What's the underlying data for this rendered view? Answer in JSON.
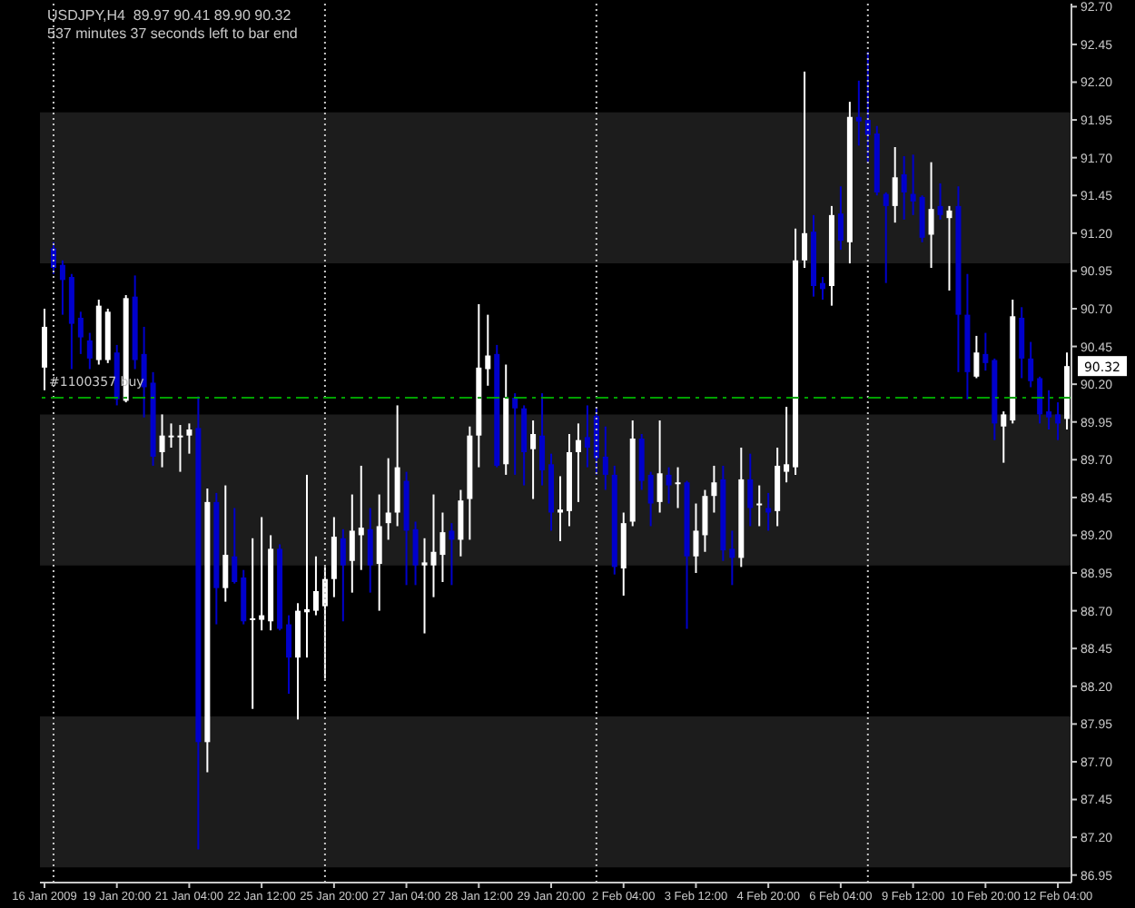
{
  "chart_data": {
    "type": "candlestick",
    "title": "USDJPY,H4  89.97 90.41 89.90 90.32",
    "subtitle": "537 minutes 37 seconds left to bar end",
    "categories": [
      "16 Jan 2009",
      null,
      null,
      null,
      null,
      null,
      null,
      null,
      "19 Jan 20:00",
      null,
      null,
      null,
      null,
      null,
      null,
      null,
      "21 Jan 04:00",
      null,
      null,
      null,
      null,
      null,
      null,
      null,
      "22 Jan 12:00",
      null,
      null,
      null,
      null,
      null,
      null,
      null,
      "25 Jan 20:00",
      null,
      null,
      null,
      null,
      null,
      null,
      null,
      "27 Jan 04:00",
      null,
      null,
      null,
      null,
      null,
      null,
      null,
      "28 Jan 12:00",
      null,
      null,
      null,
      null,
      null,
      null,
      null,
      "29 Jan 20:00",
      null,
      null,
      null,
      null,
      null,
      null,
      null,
      "2 Feb 04:00",
      null,
      null,
      null,
      null,
      null,
      null,
      null,
      "3 Feb 12:00",
      null,
      null,
      null,
      null,
      null,
      null,
      null,
      "4 Feb 20:00",
      null,
      null,
      null,
      null,
      null,
      null,
      null,
      "6 Feb 04:00",
      null,
      null,
      null,
      null,
      null,
      null,
      null,
      "9 Feb 12:00",
      null,
      null,
      null,
      null,
      null,
      null,
      null,
      "10 Feb 20:00",
      null,
      null,
      null,
      null,
      null,
      null,
      null,
      "12 Feb 04:00",
      null
    ],
    "ohlc": [
      [
        90.31,
        90.7,
        90.16,
        90.58
      ],
      [
        91.1,
        91.14,
        90.93,
        90.97
      ],
      [
        90.99,
        91.02,
        90.66,
        90.89
      ],
      [
        90.91,
        90.93,
        90.3,
        90.6
      ],
      [
        90.64,
        90.68,
        90.4,
        90.51
      ],
      [
        90.49,
        90.54,
        90.3,
        90.37
      ],
      [
        90.36,
        90.76,
        90.33,
        90.72
      ],
      [
        90.36,
        90.7,
        90.34,
        90.68
      ],
      [
        90.41,
        90.46,
        90.06,
        90.1
      ],
      [
        90.09,
        90.79,
        90.08,
        90.77
      ],
      [
        90.78,
        90.92,
        90.3,
        90.36
      ],
      [
        90.4,
        90.58,
        89.98,
        90.18
      ],
      [
        90.21,
        90.28,
        89.66,
        89.72
      ],
      [
        89.75,
        90.0,
        89.65,
        89.86
      ],
      [
        89.85,
        89.94,
        89.78,
        89.86
      ],
      [
        89.85,
        89.93,
        89.62,
        89.86
      ],
      [
        89.86,
        89.94,
        89.74,
        89.9
      ],
      [
        89.91,
        90.12,
        87.12,
        87.83
      ],
      [
        87.83,
        89.51,
        87.63,
        89.42
      ],
      [
        89.42,
        89.48,
        88.61,
        88.85
      ],
      [
        88.85,
        89.53,
        88.76,
        89.07
      ],
      [
        89.06,
        89.38,
        88.88,
        88.89
      ],
      [
        88.92,
        88.97,
        88.61,
        88.63
      ],
      [
        88.64,
        89.18,
        88.05,
        88.65
      ],
      [
        88.64,
        89.32,
        88.57,
        88.67
      ],
      [
        88.63,
        89.2,
        88.57,
        89.11
      ],
      [
        89.11,
        89.14,
        88.57,
        88.58
      ],
      [
        88.61,
        88.67,
        88.15,
        88.39
      ],
      [
        88.39,
        88.75,
        87.98,
        88.7
      ],
      [
        88.69,
        89.6,
        88.39,
        88.71
      ],
      [
        88.7,
        89.06,
        88.67,
        88.83
      ],
      [
        88.73,
        88.99,
        88.25,
        88.91
      ],
      [
        88.91,
        89.32,
        88.79,
        89.19
      ],
      [
        89.18,
        89.24,
        88.63,
        89.0
      ],
      [
        89.03,
        89.47,
        88.82,
        89.23
      ],
      [
        89.2,
        89.66,
        88.97,
        89.25
      ],
      [
        89.24,
        89.38,
        88.82,
        89.0
      ],
      [
        89.01,
        89.47,
        88.7,
        89.26
      ],
      [
        89.28,
        89.71,
        89.17,
        89.35
      ],
      [
        89.35,
        90.06,
        89.26,
        89.65
      ],
      [
        89.56,
        89.62,
        88.87,
        89.23
      ],
      [
        89.24,
        89.29,
        88.87,
        89.0
      ],
      [
        89.0,
        89.18,
        88.55,
        89.02
      ],
      [
        89.0,
        89.47,
        88.79,
        89.09
      ],
      [
        89.07,
        89.35,
        88.89,
        89.22
      ],
      [
        89.23,
        89.28,
        88.87,
        89.17
      ],
      [
        89.17,
        89.5,
        89.06,
        89.43
      ],
      [
        89.44,
        89.92,
        89.17,
        89.86
      ],
      [
        89.86,
        90.73,
        89.65,
        90.31
      ],
      [
        90.3,
        90.66,
        90.19,
        90.39
      ],
      [
        90.4,
        90.46,
        89.65,
        89.66
      ],
      [
        89.67,
        90.33,
        89.6,
        90.11
      ],
      [
        90.11,
        90.14,
        89.6,
        90.04
      ],
      [
        90.04,
        90.06,
        89.53,
        89.75
      ],
      [
        89.77,
        89.96,
        89.44,
        89.87
      ],
      [
        89.86,
        90.14,
        89.53,
        89.63
      ],
      [
        89.67,
        89.74,
        89.23,
        89.35
      ],
      [
        89.35,
        89.59,
        89.16,
        89.37
      ],
      [
        89.36,
        89.87,
        89.26,
        89.75
      ],
      [
        89.75,
        89.94,
        89.42,
        89.83
      ],
      [
        89.85,
        90.06,
        89.65,
        89.78
      ],
      [
        89.99,
        90.05,
        89.6,
        89.71
      ],
      [
        89.72,
        89.92,
        89.5,
        89.6
      ],
      [
        89.6,
        89.66,
        88.94,
        88.99
      ],
      [
        88.98,
        89.35,
        88.8,
        89.28
      ],
      [
        89.29,
        89.96,
        89.26,
        89.84
      ],
      [
        89.84,
        89.87,
        89.5,
        89.56
      ],
      [
        89.6,
        89.62,
        89.26,
        89.41
      ],
      [
        89.42,
        89.96,
        89.35,
        89.61
      ],
      [
        89.6,
        89.65,
        89.41,
        89.53
      ],
      [
        89.54,
        89.65,
        89.38,
        89.55
      ],
      [
        89.55,
        89.56,
        88.58,
        89.06
      ],
      [
        89.06,
        89.41,
        88.95,
        89.23
      ],
      [
        89.2,
        89.5,
        89.09,
        89.46
      ],
      [
        89.46,
        89.66,
        89.35,
        89.55
      ],
      [
        89.57,
        89.66,
        89.03,
        89.1
      ],
      [
        89.11,
        89.23,
        88.87,
        89.05
      ],
      [
        89.05,
        89.78,
        88.99,
        89.57
      ],
      [
        89.57,
        89.74,
        89.26,
        89.38
      ],
      [
        89.4,
        89.53,
        89.26,
        89.41
      ],
      [
        89.38,
        89.48,
        89.23,
        89.35
      ],
      [
        89.36,
        89.78,
        89.26,
        89.66
      ],
      [
        89.62,
        90.05,
        89.55,
        89.67
      ],
      [
        89.65,
        91.23,
        89.6,
        91.02
      ],
      [
        91.02,
        92.27,
        90.97,
        91.2
      ],
      [
        91.21,
        91.32,
        90.78,
        90.85
      ],
      [
        90.87,
        90.91,
        90.76,
        90.83
      ],
      [
        90.85,
        91.38,
        90.72,
        91.32
      ],
      [
        91.33,
        91.51,
        91.09,
        91.15
      ],
      [
        91.14,
        92.07,
        91.0,
        91.97
      ],
      [
        91.97,
        92.21,
        91.78,
        91.94
      ],
      [
        91.95,
        92.4,
        91.67,
        91.85
      ],
      [
        91.86,
        91.91,
        91.45,
        91.47
      ],
      [
        91.46,
        91.47,
        90.87,
        91.38
      ],
      [
        91.38,
        91.77,
        91.27,
        91.57
      ],
      [
        91.59,
        91.71,
        91.29,
        91.47
      ],
      [
        91.46,
        91.72,
        91.32,
        91.41
      ],
      [
        91.44,
        91.45,
        91.14,
        91.17
      ],
      [
        91.19,
        91.67,
        90.97,
        91.36
      ],
      [
        91.38,
        91.53,
        91.29,
        91.32
      ],
      [
        91.3,
        91.38,
        90.82,
        91.35
      ],
      [
        91.38,
        91.51,
        90.28,
        90.66
      ],
      [
        90.66,
        90.93,
        90.1,
        90.28
      ],
      [
        90.25,
        90.52,
        90.24,
        90.41
      ],
      [
        90.4,
        90.54,
        90.29,
        90.34
      ],
      [
        90.36,
        90.37,
        89.83,
        89.94
      ],
      [
        89.92,
        90.02,
        89.68,
        90.0
      ],
      [
        89.96,
        90.76,
        89.94,
        90.65
      ],
      [
        90.64,
        90.71,
        90.24,
        90.37
      ],
      [
        90.37,
        90.48,
        90.18,
        90.22
      ],
      [
        90.24,
        90.25,
        89.94,
        90.0
      ],
      [
        90.02,
        90.16,
        89.9,
        89.98
      ],
      [
        90.0,
        90.08,
        89.83,
        89.94
      ],
      [
        89.97,
        90.41,
        89.9,
        90.32
      ]
    ],
    "colors": [
      "#ffffff",
      "#0000cc",
      "#0000cc",
      "#0000cc",
      "#0000cc",
      "#0000cc",
      "#ffffff",
      "#ffffff",
      "#0000cc",
      "#ffffff",
      "#0000cc",
      "#0000cc",
      "#0000cc",
      "#ffffff",
      "#ffffff",
      "#ffffff",
      "#ffffff",
      "#0000cc",
      "#ffffff",
      "#0000cc",
      "#ffffff",
      "#0000cc",
      "#0000cc",
      "#ffffff",
      "#ffffff",
      "#ffffff",
      "#0000cc",
      "#0000cc",
      "#ffffff",
      "#ffffff",
      "#ffffff",
      "#ffffff",
      "#ffffff",
      "#0000cc",
      "#ffffff",
      "#ffffff",
      "#0000cc",
      "#ffffff",
      "#ffffff",
      "#ffffff",
      "#0000cc",
      "#0000cc",
      "#ffffff",
      "#ffffff",
      "#ffffff",
      "#0000cc",
      "#ffffff",
      "#ffffff",
      "#ffffff",
      "#ffffff",
      "#0000cc",
      "#ffffff",
      "#0000cc",
      "#0000cc",
      "#ffffff",
      "#0000cc",
      "#0000cc",
      "#ffffff",
      "#ffffff",
      "#ffffff",
      "#0000cc",
      "#0000cc",
      "#0000cc",
      "#0000cc",
      "#ffffff",
      "#ffffff",
      "#0000cc",
      "#0000cc",
      "#ffffff",
      "#0000cc",
      "#ffffff",
      "#0000cc",
      "#ffffff",
      "#ffffff",
      "#ffffff",
      "#0000cc",
      "#0000cc",
      "#ffffff",
      "#0000cc",
      "#ffffff",
      "#0000cc",
      "#ffffff",
      "#ffffff",
      "#ffffff",
      "#ffffff",
      "#0000cc",
      "#0000cc",
      "#ffffff",
      "#0000cc",
      "#ffffff",
      "#0000cc",
      "#0000cc",
      "#0000cc",
      "#0000cc",
      "#ffffff",
      "#0000cc",
      "#0000cc",
      "#0000cc",
      "#ffffff",
      "#0000cc",
      "#ffffff",
      "#0000cc",
      "#0000cc",
      "#ffffff",
      "#0000cc",
      "#0000cc",
      "#ffffff",
      "#ffffff",
      "#0000cc",
      "#0000cc",
      "#0000cc",
      "#0000cc",
      "#0000cc",
      "#ffffff"
    ],
    "grid": "x",
    "ylim": [
      86.9,
      92.72
    ],
    "yticks": [
      86.95,
      {
        "value": 87.2,
        "label": "87.20"
      },
      87.45,
      {
        "value": 87.7,
        "label": "87.70"
      },
      87.95,
      {
        "value": 88.2,
        "label": "88.20"
      },
      88.45,
      {
        "value": 88.7,
        "label": "88.70"
      },
      88.95,
      {
        "value": 89.2,
        "label": "89.20"
      },
      89.45,
      {
        "value": 89.7,
        "label": "89.70"
      },
      89.95,
      {
        "value": 90.2,
        "label": "90.20"
      },
      90.45,
      {
        "value": 90.7,
        "label": "90.70"
      },
      90.95,
      {
        "value": 91.2,
        "label": "91.20"
      },
      91.45,
      {
        "value": 91.7,
        "label": "91.70"
      },
      91.95,
      {
        "value": 92.2,
        "label": "92.20"
      },
      92.45,
      {
        "value": 92.7,
        "label": "92.70"
      }
    ],
    "bands": [
      {
        "axis": "y",
        "from": 91,
        "to": 92,
        "color": "#1c1c1c"
      },
      {
        "axis": "y",
        "from": 89,
        "to": 90,
        "color": "#1c1c1c"
      },
      {
        "axis": "y",
        "from": 87,
        "to": 88,
        "color": "#1c1c1c"
      }
    ],
    "ref_lines": [
      {
        "axis": "y",
        "value": 90.11,
        "label": "#1100357 buy",
        "color": "#00a000",
        "line_style": "dashed"
      }
    ],
    "annotations": [
      {
        "text": "90.32",
        "y": 90.32
      }
    ]
  }
}
